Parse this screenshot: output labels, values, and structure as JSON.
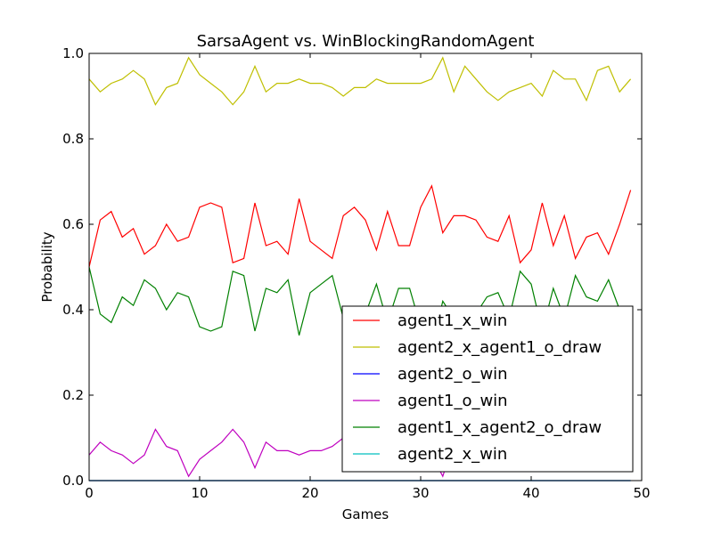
{
  "chart_data": {
    "type": "line",
    "title": "SarsaAgent vs. WinBlockingRandomAgent",
    "xlabel": "Games",
    "ylabel": "Probability",
    "xlim": [
      0,
      50
    ],
    "ylim": [
      0.0,
      1.0
    ],
    "x_ticks": [
      "0",
      "10",
      "20",
      "30",
      "40",
      "50"
    ],
    "y_ticks": [
      "0.0",
      "0.2",
      "0.4",
      "0.6",
      "0.8",
      "1.0"
    ],
    "grid": false,
    "legend_position": "lower-right",
    "x": [
      0,
      1,
      2,
      3,
      4,
      5,
      6,
      7,
      8,
      9,
      10,
      11,
      12,
      13,
      14,
      15,
      16,
      17,
      18,
      19,
      20,
      21,
      22,
      23,
      24,
      25,
      26,
      27,
      28,
      29,
      30,
      31,
      32,
      33,
      34,
      35,
      36,
      37,
      38,
      39,
      40,
      41,
      42,
      43,
      44,
      45,
      46,
      47,
      48,
      49
    ],
    "series": [
      {
        "name": "agent1_x_win",
        "color": "#ff0000",
        "values": [
          0.5,
          0.61,
          0.63,
          0.57,
          0.59,
          0.53,
          0.55,
          0.6,
          0.56,
          0.57,
          0.64,
          0.65,
          0.64,
          0.51,
          0.52,
          0.65,
          0.55,
          0.56,
          0.53,
          0.66,
          0.56,
          0.54,
          0.52,
          0.62,
          0.64,
          0.61,
          0.54,
          0.63,
          0.55,
          0.55,
          0.64,
          0.69,
          0.58,
          0.62,
          0.62,
          0.61,
          0.57,
          0.56,
          0.62,
          0.51,
          0.54,
          0.65,
          0.55,
          0.62,
          0.52,
          0.57,
          0.58,
          0.53,
          0.6,
          0.68
        ]
      },
      {
        "name": "agent2_x_agent1_o_draw",
        "color": "#bfbf00",
        "values": [
          0.94,
          0.91,
          0.93,
          0.94,
          0.96,
          0.94,
          0.88,
          0.92,
          0.93,
          0.99,
          0.95,
          0.93,
          0.91,
          0.88,
          0.91,
          0.97,
          0.91,
          0.93,
          0.93,
          0.94,
          0.93,
          0.93,
          0.92,
          0.9,
          0.92,
          0.92,
          0.94,
          0.93,
          0.93,
          0.93,
          0.93,
          0.94,
          0.99,
          0.91,
          0.97,
          0.94,
          0.91,
          0.89,
          0.91,
          0.92,
          0.93,
          0.9,
          0.96,
          0.94,
          0.94,
          0.89,
          0.96,
          0.97,
          0.91,
          0.94
        ]
      },
      {
        "name": "agent2_o_win",
        "color": "#0000ff",
        "values": [
          0,
          0,
          0,
          0,
          0,
          0,
          0,
          0,
          0,
          0,
          0,
          0,
          0,
          0,
          0,
          0,
          0,
          0,
          0,
          0,
          0,
          0,
          0,
          0,
          0,
          0,
          0,
          0,
          0,
          0,
          0,
          0,
          0,
          0,
          0,
          0,
          0,
          0,
          0,
          0,
          0,
          0,
          0,
          0,
          0,
          0,
          0,
          0,
          0,
          0
        ]
      },
      {
        "name": "agent1_o_win",
        "color": "#bf00bf",
        "values": [
          0.06,
          0.09,
          0.07,
          0.06,
          0.04,
          0.06,
          0.12,
          0.08,
          0.07,
          0.01,
          0.05,
          0.07,
          0.09,
          0.12,
          0.09,
          0.03,
          0.09,
          0.07,
          0.07,
          0.06,
          0.07,
          0.07,
          0.08,
          0.1,
          0.08,
          0.08,
          0.06,
          0.07,
          0.07,
          0.07,
          0.07,
          0.06,
          0.01,
          0.09,
          0.03,
          0.06,
          0.09,
          0.11,
          0.09,
          0.08,
          0.07,
          0.1,
          0.04,
          0.06,
          0.06,
          0.11,
          0.04,
          0.03,
          0.09,
          0.06
        ]
      },
      {
        "name": "agent1_x_agent2_o_draw",
        "color": "#008000",
        "values": [
          0.5,
          0.39,
          0.37,
          0.43,
          0.41,
          0.47,
          0.45,
          0.4,
          0.44,
          0.43,
          0.36,
          0.35,
          0.36,
          0.49,
          0.48,
          0.35,
          0.45,
          0.44,
          0.47,
          0.34,
          0.44,
          0.46,
          0.48,
          0.38,
          0.36,
          0.39,
          0.46,
          0.37,
          0.45,
          0.45,
          0.36,
          0.31,
          0.42,
          0.38,
          0.38,
          0.39,
          0.43,
          0.44,
          0.38,
          0.49,
          0.46,
          0.35,
          0.45,
          0.38,
          0.48,
          0.43,
          0.42,
          0.47,
          0.4,
          0.32
        ]
      },
      {
        "name": "agent2_x_win",
        "color": "#00bfbf",
        "values": [
          0,
          0,
          0,
          0,
          0,
          0,
          0,
          0,
          0,
          0,
          0,
          0,
          0,
          0,
          0,
          0,
          0,
          0,
          0,
          0,
          0,
          0,
          0,
          0,
          0,
          0,
          0,
          0,
          0,
          0,
          0,
          0,
          0,
          0,
          0,
          0,
          0,
          0,
          0,
          0,
          0,
          0,
          0,
          0,
          0,
          0,
          0,
          0,
          0,
          0
        ]
      }
    ]
  }
}
